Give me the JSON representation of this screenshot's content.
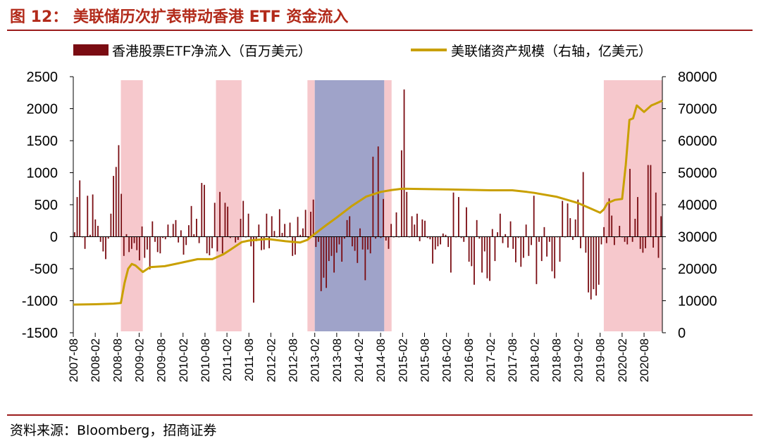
{
  "title": "图 12： 美联储历次扩表带动香港 ETF 资金流入",
  "source": "资料来源：Bloomberg，招商证券",
  "colors": {
    "bar": "#7a0c12",
    "line": "#c9a000",
    "pink_band": "#f6c8cc",
    "blue_band": "#9fa3c9",
    "rule": "#9b1c1c",
    "title": "#b22a1a"
  },
  "chart_data": {
    "type": "bar+line",
    "legend_placement": "top",
    "grid": false,
    "series": [
      {
        "name": "香港股票ETF净流入（百万美元）",
        "type": "bar",
        "axis": "left",
        "values": [
          70,
          620,
          880,
          -10,
          -190,
          640,
          30,
          660,
          270,
          170,
          -80,
          -230,
          -350,
          -30,
          360,
          950,
          1090,
          1430,
          670,
          -300,
          40,
          -240,
          -190,
          -100,
          -210,
          -370,
          160,
          -330,
          -200,
          -510,
          240,
          -80,
          -240,
          -260,
          -20,
          -40,
          190,
          -10,
          200,
          260,
          -90,
          100,
          -280,
          -130,
          180,
          480,
          40,
          280,
          -100,
          840,
          810,
          -260,
          -290,
          -180,
          530,
          -230,
          700,
          -260,
          530,
          470,
          -20,
          0,
          -90,
          -50,
          280,
          560,
          -10,
          360,
          -150,
          -1030,
          -70,
          190,
          -210,
          -200,
          360,
          -180,
          320,
          90,
          -10,
          430,
          60,
          200,
          -10,
          220,
          -300,
          -280,
          310,
          30,
          130,
          420,
          -20,
          390,
          580,
          -160,
          -80,
          -850,
          -640,
          -800,
          -380,
          -300,
          -560,
          -250,
          -120,
          -390,
          -30,
          260,
          320,
          -150,
          -220,
          -410,
          130,
          -200,
          -680,
          -200,
          -260,
          1250,
          -30,
          1410,
          -20,
          590,
          -60,
          -190,
          200,
          -10,
          380,
          -10,
          1350,
          2300,
          700,
          -10,
          320,
          190,
          360,
          -70,
          270,
          250,
          -20,
          -40,
          -420,
          -200,
          -150,
          -120,
          50,
          30,
          -160,
          -560,
          690,
          -10,
          620,
          -20,
          -80,
          460,
          -390,
          -460,
          -750,
          260,
          -30,
          -560,
          -230,
          -650,
          -690,
          120,
          -380,
          70,
          360,
          -100,
          40,
          -170,
          240,
          -190,
          -400,
          -20,
          -470,
          -330,
          190,
          -300,
          -130,
          640,
          -740,
          -80,
          -380,
          150,
          -310,
          -80,
          -540,
          -650,
          -10,
          -390,
          560,
          -10,
          520,
          290,
          -50,
          270,
          580,
          -180,
          1010,
          -250,
          -870,
          -980,
          -820,
          -920,
          -750,
          -120,
          150,
          -100,
          600,
          330,
          -130,
          -10,
          170,
          -10,
          -80,
          -120,
          1060,
          -80,
          280,
          620,
          -190,
          -250,
          -180,
          1120,
          1120,
          -170,
          690,
          -330,
          320
        ]
      },
      {
        "name": "美联储资产规模（右轴，亿美元）",
        "type": "line",
        "axis": "right",
        "points": [
          [
            "2007-08",
            8800
          ],
          [
            "2008-02",
            8900
          ],
          [
            "2008-07",
            9100
          ],
          [
            "2008-09",
            9300
          ],
          [
            "2008-10",
            15500
          ],
          [
            "2008-11",
            20000
          ],
          [
            "2008-12",
            21500
          ],
          [
            "2009-01",
            21000
          ],
          [
            "2009-03",
            19000
          ],
          [
            "2009-05",
            20500
          ],
          [
            "2009-09",
            20800
          ],
          [
            "2010-02",
            22000
          ],
          [
            "2010-06",
            23000
          ],
          [
            "2010-10",
            23000
          ],
          [
            "2010-11",
            23500
          ],
          [
            "2011-01",
            24500
          ],
          [
            "2011-03",
            26000
          ],
          [
            "2011-06",
            28300
          ],
          [
            "2011-08",
            28800
          ],
          [
            "2012-01",
            29300
          ],
          [
            "2012-06",
            28600
          ],
          [
            "2012-10",
            28200
          ],
          [
            "2012-12",
            29000
          ],
          [
            "2013-01",
            30000
          ],
          [
            "2013-05",
            33500
          ],
          [
            "2013-08",
            36000
          ],
          [
            "2013-12",
            39500
          ],
          [
            "2014-04",
            42500
          ],
          [
            "2014-08",
            44000
          ],
          [
            "2014-11",
            44600
          ],
          [
            "2015-02",
            45000
          ],
          [
            "2016-02",
            44800
          ],
          [
            "2017-02",
            44500
          ],
          [
            "2017-08",
            44500
          ],
          [
            "2017-12",
            44000
          ],
          [
            "2018-02",
            43700
          ],
          [
            "2018-08",
            42500
          ],
          [
            "2019-02",
            40500
          ],
          [
            "2019-06",
            38500
          ],
          [
            "2019-08",
            37500
          ],
          [
            "2019-09",
            38500
          ],
          [
            "2019-10",
            40500
          ],
          [
            "2019-12",
            41500
          ],
          [
            "2020-02",
            41800
          ],
          [
            "2020-03",
            52500
          ],
          [
            "2020-04",
            66500
          ],
          [
            "2020-05",
            67000
          ],
          [
            "2020-06",
            71000
          ],
          [
            "2020-07",
            70000
          ],
          [
            "2020-08",
            69000
          ],
          [
            "2020-09",
            70000
          ],
          [
            "2020-10",
            71000
          ],
          [
            "2020-11",
            71500
          ],
          [
            "2021-01",
            72500
          ]
        ]
      }
    ],
    "x_ticks": [
      "2007-08",
      "2008-02",
      "2008-08",
      "2009-02",
      "2009-08",
      "2010-02",
      "2010-08",
      "2011-02",
      "2011-08",
      "2012-02",
      "2012-08",
      "2013-02",
      "2013-08",
      "2014-02",
      "2014-08",
      "2015-02",
      "2015-08",
      "2016-02",
      "2016-08",
      "2017-02",
      "2017-08",
      "2018-02",
      "2018-08",
      "2019-02",
      "2019-08",
      "2020-02",
      "2020-08"
    ],
    "x_range": [
      "2007-08",
      "2021-01"
    ],
    "y_left": {
      "min": -1500,
      "max": 2500,
      "ticks": [
        "2500",
        "2000",
        "1500",
        "1000",
        "500",
        "0",
        "-500",
        "-1000",
        "-1500"
      ]
    },
    "y_right": {
      "min": 0,
      "max": 80000,
      "ticks": [
        "80000",
        "70000",
        "60000",
        "50000",
        "40000",
        "30000",
        "20000",
        "10000",
        "0"
      ]
    },
    "bands": [
      {
        "start": "2008-09",
        "end": "2009-03",
        "color": "pink"
      },
      {
        "start": "2010-11",
        "end": "2011-06",
        "color": "pink"
      },
      {
        "start": "2012-12",
        "end": "2013-02",
        "color": "pink"
      },
      {
        "start": "2013-02",
        "end": "2014-09",
        "color": "blue"
      },
      {
        "start": "2014-09",
        "end": "2014-11",
        "color": "pink"
      },
      {
        "start": "2019-09",
        "end": "2021-01",
        "color": "pink"
      }
    ]
  }
}
